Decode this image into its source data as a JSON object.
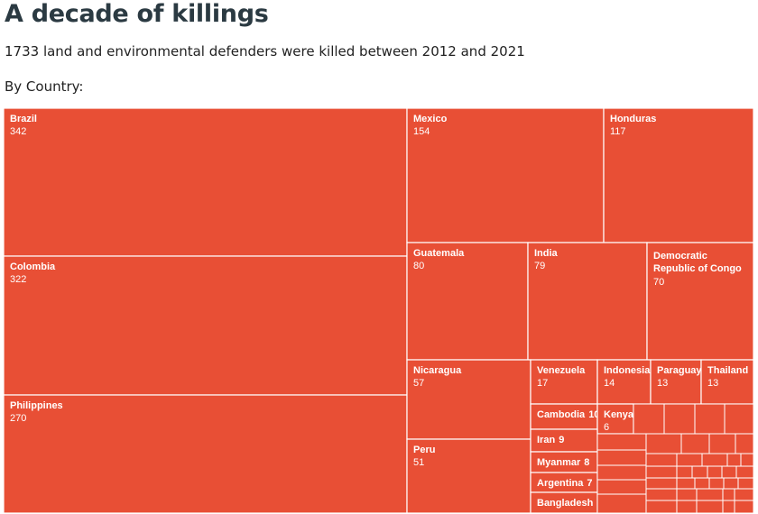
{
  "header": {
    "title": "A decade of killings",
    "subtitle": "1733 land and environmental defenders were killed between 2012 and 2021",
    "group_label": "By Country:"
  },
  "colors": {
    "tile": "#e84f35",
    "border": "#ffffff"
  },
  "chart_data": {
    "type": "treemap",
    "title": "A decade of killings",
    "subtitle": "1733 land and environmental defenders were killed between 2012 and 2021",
    "grouping": "By Country:",
    "items": [
      {
        "name": "Brazil",
        "value": 342
      },
      {
        "name": "Colombia",
        "value": 322
      },
      {
        "name": "Philippines",
        "value": 270
      },
      {
        "name": "Mexico",
        "value": 154
      },
      {
        "name": "Honduras",
        "value": 117
      },
      {
        "name": "Guatemala",
        "value": 80
      },
      {
        "name": "India",
        "value": 79
      },
      {
        "name": "Democratic Republic of Congo",
        "value": 70
      },
      {
        "name": "Nicaragua",
        "value": 57
      },
      {
        "name": "Peru",
        "value": 51
      },
      {
        "name": "Venezuela",
        "value": 17
      },
      {
        "name": "Indonesia",
        "value": 14
      },
      {
        "name": "Paraguay",
        "value": 13
      },
      {
        "name": "Thailand",
        "value": 13
      },
      {
        "name": "Cambodia",
        "value": 10
      },
      {
        "name": "Kenya",
        "value": 6
      },
      {
        "name": "Iran",
        "value": 9
      },
      {
        "name": "Myanmar",
        "value": 8
      },
      {
        "name": "Argentina",
        "value": 7
      },
      {
        "name": "Bangladesh",
        "value": 7
      }
    ]
  }
}
